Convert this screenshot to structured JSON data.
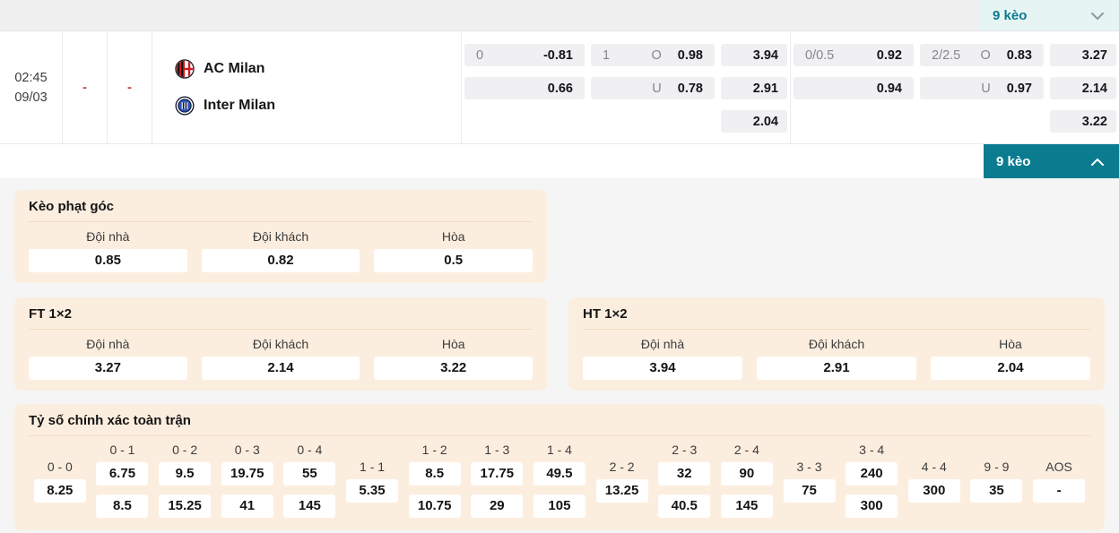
{
  "topbar": {
    "keo_toggle_label": "9 kèo"
  },
  "expand_bar": {
    "label": "9 kèo"
  },
  "match": {
    "time": "02:45",
    "date": "09/03",
    "home_score": "-",
    "away_score": "-",
    "home_team": "AC Milan",
    "away_team": "Inter Milan",
    "odds_groups": [
      {
        "hdp": {
          "line": "0",
          "home": "-0.81",
          "away": "0.66"
        },
        "ou": {
          "line": "1",
          "over_label": "O",
          "over": "0.98",
          "under_label": "U",
          "under": "0.78"
        },
        "x12": [
          "3.94",
          "2.91",
          "2.04"
        ]
      },
      {
        "hdp": {
          "line": "0/0.5",
          "home": "0.92",
          "away": "0.94"
        },
        "ou": {
          "line": "2/2.5",
          "over_label": "O",
          "over": "0.83",
          "under_label": "U",
          "under": "0.97"
        },
        "x12": [
          "3.27",
          "2.14",
          "3.22"
        ]
      }
    ]
  },
  "panels": {
    "corner": {
      "title": "Kèo phạt góc",
      "headers": [
        "Đội nhà",
        "Đội khách",
        "Hòa"
      ],
      "values": [
        "0.85",
        "0.82",
        "0.5"
      ]
    },
    "ft": {
      "title": "FT 1×2",
      "headers": [
        "Đội nhà",
        "Đội khách",
        "Hòa"
      ],
      "values": [
        "3.27",
        "2.14",
        "3.22"
      ]
    },
    "ht": {
      "title": "HT 1×2",
      "headers": [
        "Đội nhà",
        "Đội khách",
        "Hòa"
      ],
      "values": [
        "3.94",
        "2.91",
        "2.04"
      ]
    },
    "correct_score": {
      "title": "Tỷ số chính xác toàn trận",
      "items": [
        {
          "score": "0 - 0",
          "values": [
            "8.25"
          ]
        },
        {
          "score": "0 - 1",
          "values": [
            "6.75",
            "8.5"
          ]
        },
        {
          "score": "0 - 2",
          "values": [
            "9.5",
            "15.25"
          ]
        },
        {
          "score": "0 - 3",
          "values": [
            "19.75",
            "41"
          ]
        },
        {
          "score": "0 - 4",
          "values": [
            "55",
            "145"
          ]
        },
        {
          "score": "1 - 1",
          "values": [
            "5.35"
          ]
        },
        {
          "score": "1 - 2",
          "values": [
            "8.5",
            "10.75"
          ]
        },
        {
          "score": "1 - 3",
          "values": [
            "17.75",
            "29"
          ]
        },
        {
          "score": "1 - 4",
          "values": [
            "49.5",
            "105"
          ]
        },
        {
          "score": "2 - 2",
          "values": [
            "13.25"
          ]
        },
        {
          "score": "2 - 3",
          "values": [
            "32",
            "40.5"
          ]
        },
        {
          "score": "2 - 4",
          "values": [
            "90",
            "145"
          ]
        },
        {
          "score": "3 - 3",
          "values": [
            "75"
          ]
        },
        {
          "score": "3 - 4",
          "values": [
            "240",
            "300"
          ]
        },
        {
          "score": "4 - 4",
          "values": [
            "300"
          ]
        },
        {
          "score": "9 - 9",
          "values": [
            "35"
          ]
        },
        {
          "score": "AOS",
          "values": [
            "-"
          ]
        }
      ]
    }
  },
  "colors": {
    "accent_teal": "#0b7b90",
    "mint": "#e7f4f4",
    "panel_peach": "#fceede",
    "score_red": "#c9453e"
  }
}
